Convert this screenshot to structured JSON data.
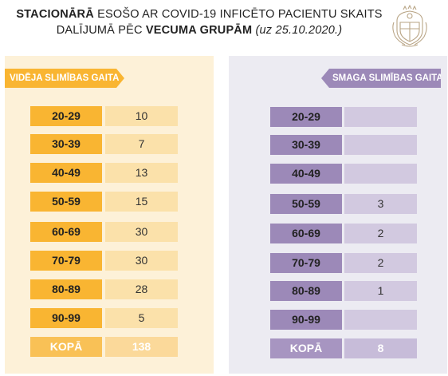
{
  "title": {
    "line1_bold_a": "STACIONĀRĀ",
    "line1_rest": " ESOŠO AR COVID-19 INFICĒTO PACIENTU SKAITS",
    "line2_start": "DALĪJUMĀ PĒC ",
    "line2_bold": "VECUMA GRUPĀM",
    "line2_italic": " (uz 25.10.2020.)"
  },
  "left_panel": {
    "banner": "VIDĒJA SLIMĪBAS GAITA",
    "rows": [
      {
        "group": "20-29",
        "value": "10"
      },
      {
        "group": "30-39",
        "value": "7"
      },
      {
        "group": "40-49",
        "value": "13"
      },
      {
        "group": "50-59",
        "value": "15"
      },
      {
        "group": "60-69",
        "value": "30"
      },
      {
        "group": "70-79",
        "value": "30"
      },
      {
        "group": "80-89",
        "value": "28"
      },
      {
        "group": "90-99",
        "value": "5"
      }
    ],
    "total": {
      "label": "KOPĀ",
      "value": "138"
    }
  },
  "right_panel": {
    "banner": "SMAGA SLIMĪBAS GAITA",
    "rows": [
      {
        "group": "20-29",
        "value": ""
      },
      {
        "group": "30-39",
        "value": ""
      },
      {
        "group": "40-49",
        "value": ""
      },
      {
        "group": "50-59",
        "value": "3"
      },
      {
        "group": "60-69",
        "value": "2"
      },
      {
        "group": "70-79",
        "value": "2"
      },
      {
        "group": "80-89",
        "value": "1"
      },
      {
        "group": "90-99",
        "value": ""
      }
    ],
    "total": {
      "label": "KOPĀ",
      "value": "8"
    }
  },
  "colors": {
    "moderate_accent": "#f9b532",
    "moderate_light": "#fbe1aa",
    "moderate_panel": "#fdf1d8",
    "severe_accent": "#9c89b8",
    "severe_light": "#d2c9e0",
    "severe_panel": "#ecebf2"
  },
  "icons": {
    "crest": "latvia-coat-of-arms-icon"
  }
}
